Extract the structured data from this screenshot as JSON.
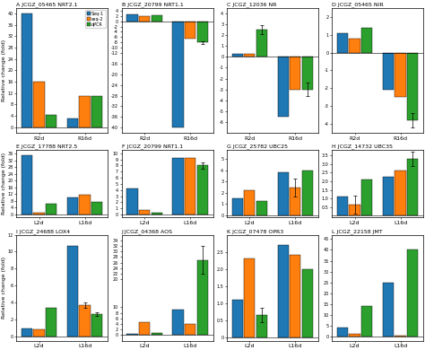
{
  "chart_data": [
    {
      "type": "bar",
      "title": "A JCGZ_05465 NRT2.1",
      "ylabel": "Relative change (fold)",
      "categories": [
        "R2d",
        "R16d"
      ],
      "series": [
        {
          "name": "Seq-1",
          "values": [
            40,
            3
          ]
        },
        {
          "name": "seq-2",
          "values": [
            16,
            11
          ]
        },
        {
          "name": "qPCR",
          "values": [
            4.5,
            11
          ]
        }
      ],
      "ylim": [
        -2,
        42
      ],
      "yticks": [
        0,
        4,
        8,
        12,
        16,
        20,
        24,
        28,
        32,
        36,
        40
      ],
      "legend": "upper right"
    },
    {
      "type": "bar",
      "title": "B JCGZ_20799 NRT1.1",
      "categories": [
        "R2d",
        "R16d"
      ],
      "series": [
        {
          "name": "Seq-1",
          "values": [
            2.5,
            -40
          ]
        },
        {
          "name": "seq-2",
          "values": [
            2.0,
            -6.5
          ]
        },
        {
          "name": "qPCR",
          "values": [
            2.2,
            -8
          ],
          "errors": [
            0,
            0.5
          ]
        }
      ],
      "ylim": [
        -42,
        5
      ],
      "yticks": [
        -40,
        -36,
        -32,
        -28,
        -24,
        -20,
        -16,
        -12,
        -10,
        -8,
        -6,
        -4,
        -2,
        0,
        2,
        4
      ]
    },
    {
      "type": "bar",
      "title": "C JCGZ_12036 NR",
      "categories": [
        "R2d",
        "R16d"
      ],
      "series": [
        {
          "name": "Seq-1",
          "values": [
            0.3,
            -5.5
          ]
        },
        {
          "name": "seq-2",
          "values": [
            0.3,
            -3.0
          ]
        },
        {
          "name": "qPCR",
          "values": [
            2.5,
            -3.0
          ],
          "errors": [
            0.4,
            0.6
          ]
        }
      ],
      "ylim": [
        -7,
        4.5
      ],
      "yticks": [
        -6,
        -5,
        -4,
        -3,
        -2,
        -1,
        0,
        1,
        2,
        3,
        4
      ]
    },
    {
      "type": "bar",
      "title": "D JCGZ_05465 NIR",
      "categories": [
        "R2d",
        "R16d"
      ],
      "series": [
        {
          "name": "Seq-1",
          "values": [
            1.1,
            -2.1
          ]
        },
        {
          "name": "seq-2",
          "values": [
            0.8,
            -2.5
          ]
        },
        {
          "name": "qPCR",
          "values": [
            1.4,
            -3.8
          ],
          "errors": [
            0,
            0.4
          ]
        }
      ],
      "ylim": [
        -4.5,
        2.5
      ],
      "yticks": [
        -4,
        -3,
        -2,
        -1,
        0,
        1,
        2
      ]
    },
    {
      "type": "bar",
      "title": "E JCGZ_17788 NRT2.5",
      "ylabel": "Relative change (fold)",
      "categories": [
        "L2d",
        "L16d"
      ],
      "series": [
        {
          "name": "Seq-1",
          "values": [
            35,
            10
          ]
        },
        {
          "name": "seq-2",
          "values": [
            1,
            11.5
          ]
        },
        {
          "name": "qPCR",
          "values": [
            6,
            7.5
          ]
        }
      ],
      "ylim": [
        -2,
        38
      ],
      "yticks": [
        0,
        4,
        8,
        12,
        16,
        20,
        24,
        28,
        32,
        36
      ]
    },
    {
      "type": "bar",
      "title": "F JCGZ_20799 NRT1.1",
      "categories": [
        "L2d",
        "L16d"
      ],
      "series": [
        {
          "name": "Seq-1",
          "values": [
            4.2,
            9.2
          ]
        },
        {
          "name": "seq-2",
          "values": [
            0.8,
            9.2
          ]
        },
        {
          "name": "qPCR",
          "values": [
            0.3,
            8.0
          ],
          "errors": [
            0,
            0.5
          ]
        }
      ],
      "ylim": [
        -0.5,
        10.5
      ],
      "yticks": [
        0,
        1,
        2,
        3,
        4,
        5,
        6,
        7,
        8,
        9,
        10
      ]
    },
    {
      "type": "bar",
      "title": "G JCGZ_25782 UBC25",
      "categories": [
        "L2d",
        "L16d"
      ],
      "series": [
        {
          "name": "Seq-1",
          "values": [
            1.5,
            3.8
          ]
        },
        {
          "name": "seq-2",
          "values": [
            2.2,
            2.5
          ],
          "errors": [
            0,
            0.8
          ]
        },
        {
          "name": "qPCR",
          "values": [
            1.3,
            4.0
          ]
        }
      ],
      "ylim": [
        -0.2,
        5.8
      ],
      "yticks": [
        0,
        1,
        2,
        3,
        4,
        5
      ]
    },
    {
      "type": "bar",
      "title": "H JCGZ_14732 UBC35",
      "categories": [
        "L2d",
        "L16d"
      ],
      "series": [
        {
          "name": "Seq-1",
          "values": [
            1.1,
            2.25
          ]
        },
        {
          "name": "seq-2",
          "values": [
            0.65,
            2.6
          ],
          "errors": [
            0.5,
            0
          ]
        },
        {
          "name": "qPCR",
          "values": [
            2.1,
            3.3
          ],
          "errors": [
            0,
            0.4
          ]
        }
      ],
      "ylim": [
        -0.1,
        3.8
      ],
      "yticks": [
        0.5,
        {
          "value": 1,
          "label": "1.0"
        },
        1.5,
        {
          "value": 2,
          "label": "2.0"
        },
        2.5,
        {
          "value": 3,
          "label": "3.0"
        },
        3.5
      ]
    },
    {
      "type": "bar",
      "title": "I JCGZ_24688 LOX4",
      "ylabel": "Relative change (fold)",
      "categories": [
        "L2d",
        "L16d"
      ],
      "series": [
        {
          "name": "Seq-1",
          "values": [
            0.9,
            10.7
          ]
        },
        {
          "name": "seq-2",
          "values": [
            0.8,
            3.7
          ],
          "errors": [
            0,
            0.3
          ]
        },
        {
          "name": "qPCR",
          "values": [
            3.4,
            2.6
          ],
          "errors": [
            0,
            0.2
          ]
        }
      ],
      "ylim": [
        -0.5,
        12
      ],
      "yticks": [
        0,
        2,
        4,
        6,
        8,
        10,
        12
      ]
    },
    {
      "type": "bar",
      "title": "J JCGZ_04368 AOS",
      "categories": [
        "L2d",
        "L16d"
      ],
      "series": [
        {
          "name": "Seq-1",
          "values": [
            0.4,
            9.0
          ]
        },
        {
          "name": "seq-2",
          "values": [
            4.5,
            4.0
          ]
        },
        {
          "name": "qPCR",
          "values": [
            0.9,
            27.0
          ],
          "errors": [
            0,
            5.0
          ]
        }
      ],
      "ylim": [
        -2,
        36
      ],
      "yticks": [
        0,
        2,
        4,
        6,
        8,
        10,
        20,
        22,
        24,
        26,
        28,
        30,
        32,
        34
      ]
    },
    {
      "type": "bar",
      "title": "K JCGZ_07478 OPR3",
      "categories": [
        "L2d",
        "L16d"
      ],
      "series": [
        {
          "name": "Seq-1",
          "values": [
            1.1,
            2.7
          ]
        },
        {
          "name": "seq-2",
          "values": [
            2.3,
            2.4
          ]
        },
        {
          "name": "qPCR",
          "values": [
            0.65,
            2.0
          ],
          "errors": [
            0.2,
            0
          ]
        }
      ],
      "ylim": [
        -0.1,
        3.0
      ],
      "yticks": [
        0,
        0.5,
        {
          "value": 1,
          "label": "1.0"
        },
        1.5,
        {
          "value": 2,
          "label": "2.0"
        },
        2.5
      ]
    },
    {
      "type": "bar",
      "title": "L JCGZ_22158 JMT",
      "categories": [
        "L2d",
        "L16d"
      ],
      "series": [
        {
          "name": "Seq-1",
          "values": [
            4.0,
            25.0
          ]
        },
        {
          "name": "seq-2",
          "values": [
            1.0,
            0.5
          ]
        },
        {
          "name": "qPCR",
          "values": [
            14.0,
            40.0
          ]
        }
      ],
      "ylim": [
        -2,
        47
      ],
      "yticks": [
        0,
        5,
        10,
        15,
        20,
        25,
        30,
        35,
        40,
        45
      ]
    }
  ]
}
